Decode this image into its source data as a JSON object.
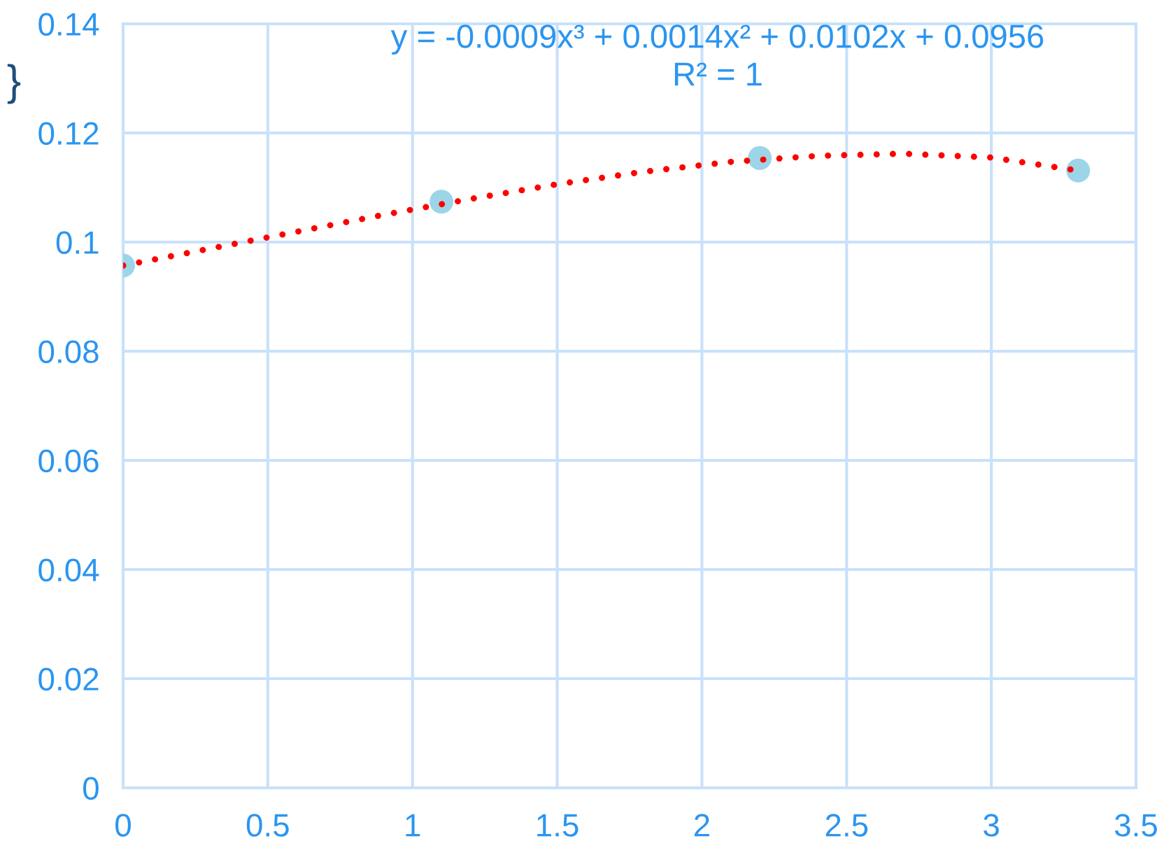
{
  "chart_data": {
    "type": "scatter",
    "series": [
      {
        "color": "#9dd5e8",
        "x": [
          0,
          1.1,
          2.2,
          3.3
        ],
        "values": [
          0.0957,
          0.1074,
          0.1154,
          0.1131
        ]
      },
      {
        "type": "line",
        "color": "#ff0000",
        "line_style": "dotted",
        "marker": "none",
        "x": [
          0,
          0.3,
          0.6,
          0.9,
          1.2,
          1.5,
          1.8,
          2.1,
          2.4,
          2.7,
          3.0,
          3.3
        ],
        "values": [
          0.0957,
          0.0988,
          0.1019,
          0.105,
          0.1079,
          0.1106,
          0.1129,
          0.1147,
          0.1158,
          0.1162,
          0.1155,
          0.1131
        ]
      }
    ],
    "xlim": [
      0,
      3.5
    ],
    "ylim": [
      0,
      0.14
    ],
    "xticks": [
      0,
      0.5,
      1,
      1.5,
      2,
      2.5,
      3,
      3.5
    ],
    "yticks": [
      0,
      0.02,
      0.04,
      0.06,
      0.08,
      0.1,
      0.12,
      0.14
    ],
    "grid": true,
    "marker": "circle",
    "annotations": [
      "y = -0.0009x³ + 0.0014x² + 0.0102x + 0.0956",
      "R² = 1",
      "}"
    ]
  }
}
